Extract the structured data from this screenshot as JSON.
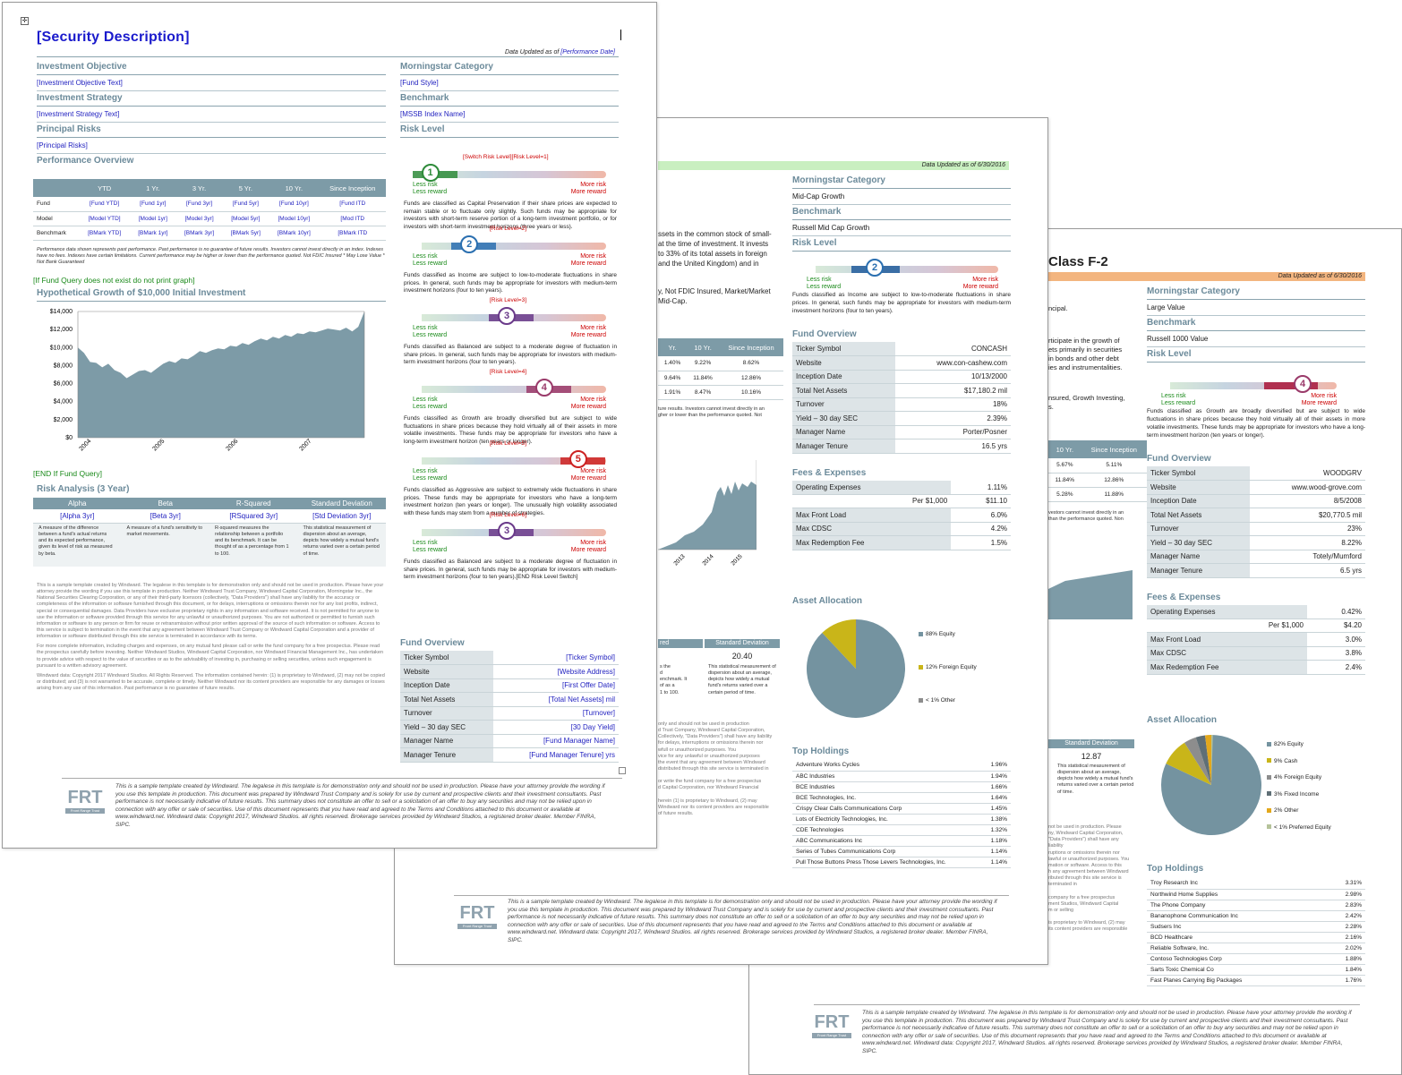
{
  "p3": {
    "title": "Class F-2",
    "updated": "Data Updated as of 6/30/2016",
    "left_frag": [
      "ncipal.",
      "rticipate in the growth of",
      "ets primarily in securities",
      "in bonds and other debt",
      "ies and instrumentalities.",
      "nsured, Growth Investing,",
      "s."
    ],
    "perf_hdr": [
      "10 Yr.",
      "Since Inception"
    ],
    "perf_rows": [
      [
        "5.67%",
        "5.11%"
      ],
      [
        "11.84%",
        "12.86%"
      ],
      [
        "5.28%",
        "11.88%"
      ]
    ],
    "perf_note": "vestors cannot invest directly in an",
    "perf_note2": "than the performance quoted. Non",
    "std_hdr": "Standard Deviation",
    "std_val": "12.87",
    "std_desc": "This statistical measurement of dispersion about an average, depicts how widely a mutual fund's returns varied over a certain period of time.",
    "legal_frag": "not be used in production. Please\nny, Windward Capital Corporation,\n\"Data Providers\") shall have any liability\nruptions or omissions therein nor\nlawful or unauthorized purposes. You\nmation or software. Access to this\nh any agreement between Windward\nributed through this site service is\nterminated in\n\ncompany for a free prospectus\nment Studios, Windward Capital\nm or selling\n\nis proprietary to Windward, (2) may\nits content providers are responsible",
    "mc_h": "Morningstar Category",
    "mc": "Large Value",
    "bm_h": "Benchmark",
    "bm": "Russell 1000 Value",
    "rl_h": "Risk Level",
    "risk_num": "4",
    "less": "Less risk",
    "lessr": "Less reward",
    "more": "More risk",
    "morer": "More reward",
    "risk_desc": "Funds classified as Growth are broadly diversified but are subject to wide fluctuations in share prices because they hold virtually all of their assets in more volatile investments. These funds may be appropriate for investors who have a long-term investment horizon (ten years or longer).",
    "fo_h": "Fund Overview",
    "fo": [
      [
        "Ticker Symbol",
        "WOODGRV"
      ],
      [
        "Website",
        "www.wood-grove.com"
      ],
      [
        "Inception Date",
        "8/5/2008"
      ],
      [
        "Total Net Assets",
        "$20,770.5 mil"
      ],
      [
        "Turnover",
        "23%"
      ],
      [
        "Yield – 30 day SEC",
        "8.22%"
      ],
      [
        "Manager Name",
        "Totely/Mumford"
      ],
      [
        "Manager Tenure",
        "6.5 yrs"
      ]
    ],
    "fe_h": "Fees & Expenses",
    "fe": [
      [
        "Operating Expenses",
        "0.42%"
      ],
      [
        "Per $1,000",
        "$4.20"
      ],
      [
        "Max Front Load",
        "3.0%"
      ],
      [
        "Max CDSC",
        "3.8%"
      ],
      [
        "Max Redemption Fee",
        "2.4%"
      ]
    ],
    "aa_h": "Asset Allocation",
    "aa": [
      {
        "label": "82% Equity",
        "color": "#7493a0"
      },
      {
        "label": "9% Cash",
        "color": "#c9b519"
      },
      {
        "label": "4% Foreign Equity",
        "color": "#8d8d8d"
      },
      {
        "label": "3% Fixed Income",
        "color": "#5f6f76"
      },
      {
        "label": "2% Other",
        "color": "#e3a81c"
      },
      {
        "label": "< 1% Preferred Equity",
        "color": "#b5c39a"
      }
    ],
    "th_h": "Top Holdings",
    "th": [
      [
        "Troy Research Inc",
        "3.31%"
      ],
      [
        "Northwind Home Supplies",
        "2.98%"
      ],
      [
        "The Phone Company",
        "2.83%"
      ],
      [
        "Bananophone Communication Inc",
        "2.42%"
      ],
      [
        "Sudsers Inc",
        "2.28%"
      ],
      [
        "BCD Healthcare",
        "2.16%"
      ],
      [
        "Reliable Software, Inc.",
        "2.02%"
      ],
      [
        "Contoso Technologies Corp",
        "1.88%"
      ],
      [
        "Sarts Toxic Chemical Co",
        "1.84%"
      ],
      [
        "Fast Planes Carrying Big Packages",
        "1.76%"
      ]
    ],
    "disc": "This is a sample template created by Windward. The legalese in this template is for demonstration only and should not be used in production. Please have your attorney provide the wording if you use this template in production. This document was prepared by Windward Trust Company and is solely for use by current and prospective clients and their investment consultants.  Past performance is not necessarily indicative of future results. This summary does not constitute an offer to sell or a solicitation of an offer to buy any securities and may not be relied upon in connection with any offer or sale of securities.  Use of this document represents that you have read and agreed to the Terms and Conditions attached to this document or available at www.windward.net.  Windward data: Copyright 2017, Windward Studios. all rights reserved.  Brokerage services provided by Windward Studios, a registered broker dealer.  Member FINRA, SIPC.",
    "logo": "FRT",
    "logo_sub": "Front Range Trust"
  },
  "p2": {
    "updated": "Data Updated as of 6/30/2016",
    "left_frag": [
      "ssets in the common stock of small-",
      "at the time of investment. It invests",
      "to 33% of its total assets in foreign",
      "and the United Kingdom) and in",
      "y, Not FDIC Insured, Market/Market",
      "Mid-Cap."
    ],
    "perf_hdr": [
      "Yr.",
      "10 Yr.",
      "Since Inception"
    ],
    "perf_rows": [
      [
        "1.40%",
        "9.22%",
        "8.62%"
      ],
      [
        "9.64%",
        "11.84%",
        "12.86%"
      ],
      [
        "1.91%",
        "8.47%",
        "10.16%"
      ]
    ],
    "perf_note": "ture results. Investors cannot invest directly in an",
    "perf_note2": "gher or lower than the performance quoted. Not",
    "xticks": [
      "2013",
      "2014",
      "2015"
    ],
    "std_hdr_a": "red",
    "std_hdr": "Standard Deviation",
    "std_val": "20.40",
    "std_left": "s the\nd\nenchmark. It\nof as a\n1 to 100.",
    "std_desc": "This statistical measurement of dispersion about an average, depicts how widely a mutual fund's returns varied over a certain period of time.",
    "legal_frag": "only and should not be used in production\nd Trust Company, Windward Capital Corporation,\nCollectively, \"Data Providers\") shall have any liability\nfor delays, interruptions or omissions therein nor\nwfull or unauthorized purposes. You\nvice for any unlawful or unauthorized purposes\nthe event that any agreement between Windward\ndistributed through this site service is terminated in\n\nor write the fund company for a free prospectus\nd Capital Corporation, nor Windward Financial\n\nherein (1) is proprietary to Windward, (2) may\nWindward nor its content providers are responsible\nof future results.",
    "mc_h": "Morningstar Category",
    "mc": "Mid-Cap Growth",
    "bm_h": "Benchmark",
    "bm": "Russell Mid Cap Growth",
    "rl_h": "Risk Level",
    "risk_num": "2",
    "less": "Less risk",
    "lessr": "Less reward",
    "more": "More risk",
    "morer": "More reward",
    "risk_desc": "Funds classified as Income are subject to low-to-moderate fluctuations in share prices. In general, such funds may be appropriate for investors with medium-term investment horizons (four to ten years).",
    "fo_h": "Fund Overview",
    "fo": [
      [
        "Ticker Symbol",
        "CONCASH"
      ],
      [
        "Website",
        "www.con-cashew.com"
      ],
      [
        "Inception Date",
        "10/13/2000"
      ],
      [
        "Total Net Assets",
        "$17,180.2 mil"
      ],
      [
        "Turnover",
        "18%"
      ],
      [
        "Yield – 30 day SEC",
        "2.39%"
      ],
      [
        "Manager Name",
        "Porter/Posner"
      ],
      [
        "Manager Tenure",
        "16.5 yrs"
      ]
    ],
    "fe_h": "Fees & Expenses",
    "fe": [
      [
        "Operating Expenses",
        "1.11%"
      ],
      [
        "Per $1,000",
        "$11.10"
      ],
      [
        "Max Front Load",
        "6.0%"
      ],
      [
        "Max CDSC",
        "4.2%"
      ],
      [
        "Max Redemption Fee",
        "1.5%"
      ]
    ],
    "aa_h": "Asset Allocation",
    "aa": [
      {
        "label": "88% Equity",
        "color": "#7493a0"
      },
      {
        "label": "12% Foreign Equity",
        "color": "#c9b519"
      },
      {
        "label": "< 1% Other",
        "color": "#8d8d8d"
      }
    ],
    "th_h": "Top Holdings",
    "th": [
      [
        "Adventure Works Cycles",
        "1.96%"
      ],
      [
        "ABC Industries",
        "1.94%"
      ],
      [
        "BCE Industries",
        "1.66%"
      ],
      [
        "BCE Technologies, Inc.",
        "1.64%"
      ],
      [
        "Crispy Clear Calls Communications Corp",
        "1.45%"
      ],
      [
        "Lots of Electricity Technologies, Inc.",
        "1.38%"
      ],
      [
        "CDE Technologies",
        "1.32%"
      ],
      [
        "ABC Communications Inc",
        "1.18%"
      ],
      [
        "Series of Tubes Communications Corp",
        "1.14%"
      ],
      [
        "Pull Those Buttons Press Those Levers Technologies, Inc.",
        "1.14%"
      ]
    ],
    "disc": "This is a sample template created by Windward. The legalese in this template is for demonstration only and should not be used in production. Please have your attorney provide the wording if you use this template in production. This document was prepared by Windward Trust Company and is solely for use by current and prospective clients and their investment consultants.  Past performance is not necessarily indicative of future results. This summary does not constitute an offer to sell or a solicitation of an offer to buy any securities and may not be relied upon in connection with any offer or sale of securities.  Use of this document represents that you have read and agreed to the Terms and Conditions attached to this document or available at www.windward.net.  Windward data: Copyright 2017, Windward Studios. all rights reserved.  Brokerage services provided by Windward Studios, a registered broker dealer.  Member FINRA, SIPC.",
    "logo": "FRT",
    "logo_sub": "Front Range Trust"
  },
  "p1": {
    "title": "[Security Description]",
    "updated_pre": "Data Updated as of ",
    "updated_field": "[Performance Date]",
    "io_h": "Investment Objective",
    "io": "[Investment Objective Text]",
    "is_h": "Investment Strategy",
    "is": "[Investment Strategy Text]",
    "pr_h": "Principal Risks",
    "pr": "[Principal Risks]",
    "po_h": "Performance Overview",
    "perf_hdr": [
      "",
      "YTD",
      "1 Yr.",
      "3 Yr.",
      "5 Yr.",
      "10 Yr.",
      "Since Inception"
    ],
    "perf_rows": [
      [
        "Fund",
        "[Fund YTD]",
        "[Fund 1yr]",
        "[Fund 3yr]",
        "[Fund 5yr]",
        "[Fund 10yr]",
        "[Fund ITD"
      ],
      [
        "Model",
        "[Model YTD]",
        "[Model 1yr]",
        "[Model 3yr]",
        "[Model 5yr]",
        "[Model 10yr]",
        "[Mod ITD"
      ],
      [
        "Benchmark",
        "[BMark YTD]",
        "[BMark 1yr]",
        "[BMark 3yr]",
        "[BMark 5yr]",
        "[BMark 10yr]",
        "[BMark ITD"
      ]
    ],
    "perf_note": "Performance data shown represents past performance. Past performance is no guarantee of future results. Investors cannot invest directly in an index. Indexes have no fees. Indexes have certain limitations. Current performance may be higher or lower than the performance quoted. Not FDIC Insured * May Lose Value * Not Bank Guaranteed",
    "if_q": "[If Fund Query does not exist do not print graph]",
    "hg_h": "Hypothetical Growth of $10,000 Initial Investment",
    "yticks": [
      "$14,000",
      "$12,000",
      "$10,000",
      "$8,000",
      "$6,000",
      "$4,000",
      "$2,000",
      "$0"
    ],
    "xticks": [
      "2004",
      "2005",
      "2006",
      "2007"
    ],
    "end_q": "[END If Fund Query]",
    "ra_h": "Risk Analysis (3 Year)",
    "ra_hdr": [
      "Alpha",
      "Beta",
      "R-Squared",
      "Standard Deviation"
    ],
    "ra_vals": [
      "[Alpha 3yr]",
      "[Beta 3yr]",
      "[RSquared 3yr]",
      "[Std Deviation 3yr]"
    ],
    "ra_desc": [
      "A measure of the difference between a fund's actual returns and its expected performance, given its level of risk as measured by beta.",
      "A measure of a fund's sensitivity to market movements.",
      "R-squared measures the relationship between a portfolio and its benchmark. It can be thought of as a percentage from 1 to 100.",
      "This statistical measurement of dispersion about an average, depicts how widely a mutual fund's returns varied over a certain period of time."
    ],
    "legal1": "This is a sample template created by Windward. The legalese in this template is for demonstration only and should not be used in production. Please have your attorney provide the wording if you use this template in production. Neither Windward Trust Company, Windward Capital Corporation, Morningstar Inc., the National Securities Clearing Corporation, or any of their third-party licensors (collectively, \"Data Providers\") shall have any liability for the accuracy or completeness of the information or software furnished through this document, or for delays, interruptions or omissions therein nor for any lost profits, indirect, special or consequential damages. Data Providers have exclusive proprietary rights in any information and software received. It is not permitted for anyone to use the information or software provided through this service for any unlawful or unauthorized purposes. You are not authorized or permitted to furnish such information or software to any person or firm for reuse or retransmission without prior written approval of the source of such information or software. Access to this service is subject to termination in the event that any agreement between Windward Trust Company or Windward Capital Corporation and a provider of information or software distributed through this site service is terminated in accordance with its terms.",
    "legal2": "For more complete information, including charges and expenses, on any mutual fund please call or write the fund company for a free prospectus. Please read the prospectus carefully before investing. Neither Windward Studios, Windward Capital Corporation, nor Windward Financial Management Inc., has undertaken to provide advice with respect to the value of securities or as to the advisability of investing in, purchasing or selling securities, unless such engagement is pursuant to a written advisory agreement.",
    "legal3": "Windward data: Copyright 2017 Windward Studios. All Rights Reserved. The information contained herein: (1) is proprietary to Windward, (2) may not be copied or distributed; and (3) is not warranted to be accurate, complete or timely. Neither Windward nor its content providers are responsible for any damages or losses arising from any use of this information. Past performance is no guarantee of future results.",
    "mc_h": "Morningstar Category",
    "mc": "[Fund Style]",
    "bm_h": "Benchmark",
    "bm": "[MSSB Index Name]",
    "rl_h": "Risk Level",
    "switch": "[Switch Risk Level][Risk Level=1]",
    "less": "Less risk",
    "lessr": "Less reward",
    "more": "More risk",
    "morer": "More reward",
    "risks": [
      {
        "n": "1",
        "color": "#2e8b3a",
        "pos": 0.05,
        "label": "",
        "desc": "Funds are classified as Capital Preservation if their share prices are expected to remain stable or to fluctuate only slightly. Such funds may be appropriate for investors with short-term reserve portion of a long-term investment portfolio, or for investors with short-term investment horizons (three years or less)."
      },
      {
        "n": "2",
        "color": "#2a6fb0",
        "pos": 0.28,
        "label": "[Risk Level=2]",
        "desc": "Funds classified as Income are subject to low-to-moderate fluctuations in share prices. In general, such funds may be appropriate for investors with medium-term investment horizons (four to ten years)."
      },
      {
        "n": "3",
        "color": "#6a3a8a",
        "pos": 0.5,
        "label": "[Risk Level=3]",
        "desc": "Funds classified as Balanced are subject to a moderate degree of fluctuation in share prices. In general, such funds may be appropriate for investors with medium-term investment horizons (four to ten years)."
      },
      {
        "n": "4",
        "color": "#9a3a6a",
        "pos": 0.72,
        "label": "[Risk Level=4]",
        "desc": "Funds classified as Growth are broadly diversified but are subject to wide fluctuations in share prices because they hold virtually all of their assets in more volatile investments. These funds may be appropriate for investors who have a long-term investment horizon (ten years or longer)."
      },
      {
        "n": "5",
        "color": "#cc2222",
        "pos": 0.92,
        "label": "[Risk Level=5]",
        "desc": "Funds classified as Aggressive are subject to extremely wide fluctuations in share prices. These funds may be appropriate for investors who have a long-term investment horizon (ten years or longer). The unusually high volatility associated with these funds may stem from a number of strategies."
      },
      {
        "n": "3",
        "color": "#6a3a8a",
        "pos": 0.5,
        "label": "[Risk Level=6]",
        "desc": "Funds classified as Balanced are subject to a moderate degree of fluctuation in share prices. In general, such funds may be appropriate for investors with medium-term investment horizons (four to ten years).[END Risk Level Switch]"
      }
    ],
    "fo_h": "Fund Overview",
    "fo": [
      [
        "Ticker Symbol",
        "[Ticker Symbol]"
      ],
      [
        "Website",
        "[Website Address]"
      ],
      [
        "Inception Date",
        "[First Offer Date]"
      ],
      [
        "Total Net Assets",
        "[Total Net Assets] mil"
      ],
      [
        "Turnover",
        "[Turnover]"
      ],
      [
        "Yield – 30 day SEC",
        "[30 Day Yield]"
      ],
      [
        "Manager Name",
        "[Fund Manager Name]"
      ],
      [
        "Manager Tenure",
        "[Fund Manager Tenure] yrs"
      ]
    ],
    "disc": "This is a sample template created by Windward. The legalese in this template is for demonstration only and should not be used in production. Please have your attorney provide the wording if you use this template in production. This document was prepared by Windward Trust Company and is solely for use by current and prospective clients and their investment consultants.  Past performance is not necessarily indicative of future results. This summary does not constitute an offer to sell or a solicitation of an offer to buy any securities and may not be relied upon in connection with any offer or sale of securities.  Use of this document represents that you have read and agreed to the Terms and Conditions attached to this document or available at www.windward.net.  Windward data: Copyright 2017, Windward Studios. all rights reserved.  Brokerage services provided by Windward Studios, a registered broker dealer.  Member FINRA, SIPC.",
    "logo": "FRT",
    "logo_sub": "Front Range Trust"
  }
}
